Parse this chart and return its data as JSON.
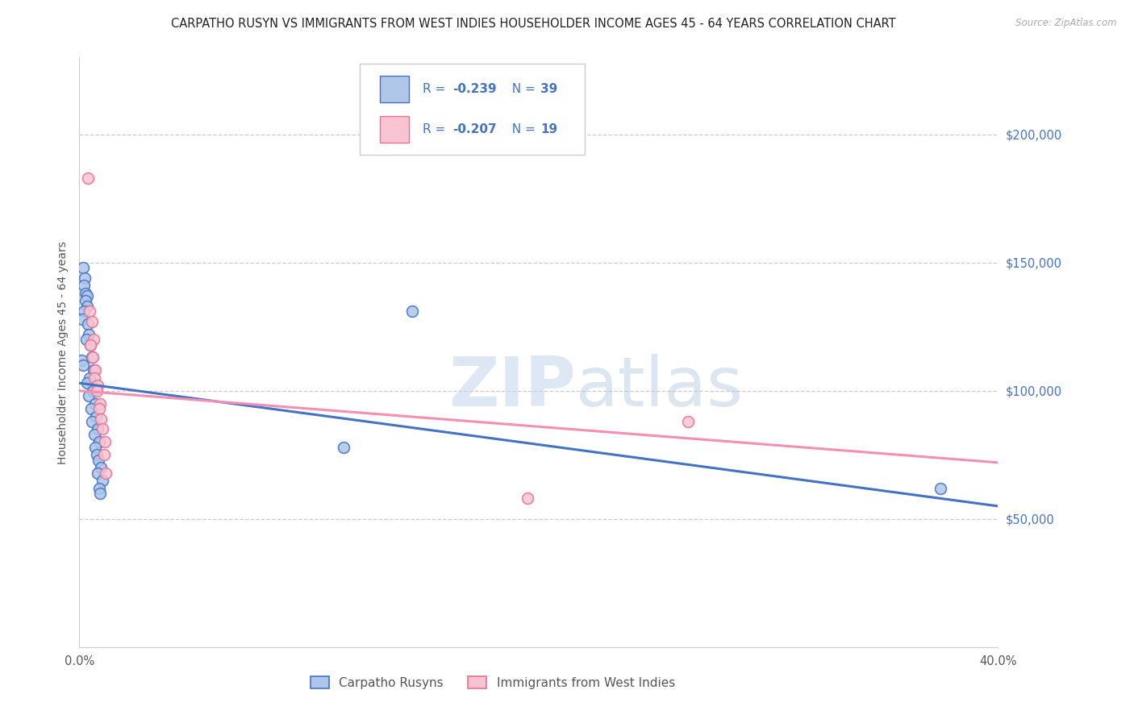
{
  "title": "CARPATHO RUSYN VS IMMIGRANTS FROM WEST INDIES HOUSEHOLDER INCOME AGES 45 - 64 YEARS CORRELATION CHART",
  "source": "Source: ZipAtlas.com",
  "ylabel": "Householder Income Ages 45 - 64 years",
  "xlim": [
    0.0,
    0.4
  ],
  "ylim": [
    0,
    230000
  ],
  "yticks": [
    50000,
    100000,
    150000,
    200000
  ],
  "ytick_labels": [
    "$50,000",
    "$100,000",
    "$150,000",
    "$200,000"
  ],
  "xticks": [
    0.0,
    0.1,
    0.2,
    0.3,
    0.4
  ],
  "xtick_labels": [
    "0.0%",
    "",
    "",
    "",
    "40.0%"
  ],
  "watermark_zip": "ZIP",
  "watermark_atlas": "atlas",
  "legend_R1": "-0.239",
  "legend_N1": "39",
  "legend_R2": "-0.207",
  "legend_N2": "19",
  "legend_label1": "Carpatho Rusyns",
  "legend_label2": "Immigrants from West Indies",
  "blue_line_color": "#4472c4",
  "pink_line_color": "#f48fb1",
  "blue_scatter_face": "#aec6e8",
  "blue_scatter_edge": "#4472c4",
  "pink_scatter_face": "#f9c4d2",
  "pink_scatter_edge": "#e87090",
  "legend_text_color": "#4472c4",
  "grid_color": "#cccccc",
  "background_color": "#ffffff",
  "title_fontsize": 10.5,
  "axis_label_fontsize": 10,
  "tick_fontsize": 10.5,
  "marker_size": 100,
  "blue_points": [
    [
      0.0015,
      148000
    ],
    [
      0.0022,
      144000
    ],
    [
      0.0018,
      141000
    ],
    [
      0.0028,
      138000
    ],
    [
      0.0032,
      137000
    ],
    [
      0.0025,
      135000
    ],
    [
      0.0035,
      133000
    ],
    [
      0.002,
      131000
    ],
    [
      0.0012,
      128000
    ],
    [
      0.0038,
      126000
    ],
    [
      0.0042,
      122000
    ],
    [
      0.003,
      120000
    ],
    [
      0.0048,
      118000
    ],
    [
      0.0055,
      113000
    ],
    [
      0.001,
      112000
    ],
    [
      0.0015,
      110000
    ],
    [
      0.0062,
      108000
    ],
    [
      0.0045,
      105000
    ],
    [
      0.0035,
      103000
    ],
    [
      0.0058,
      100000
    ],
    [
      0.004,
      98000
    ],
    [
      0.0068,
      95000
    ],
    [
      0.005,
      93000
    ],
    [
      0.0072,
      90000
    ],
    [
      0.0055,
      88000
    ],
    [
      0.008,
      85000
    ],
    [
      0.0065,
      83000
    ],
    [
      0.0088,
      80000
    ],
    [
      0.007,
      78000
    ],
    [
      0.0075,
      75000
    ],
    [
      0.0082,
      73000
    ],
    [
      0.0095,
      70000
    ],
    [
      0.0078,
      68000
    ],
    [
      0.0102,
      65000
    ],
    [
      0.0088,
      62000
    ],
    [
      0.009,
      60000
    ],
    [
      0.145,
      131000
    ],
    [
      0.375,
      62000
    ],
    [
      0.115,
      78000
    ]
  ],
  "pink_points": [
    [
      0.0038,
      183000
    ],
    [
      0.0045,
      131000
    ],
    [
      0.0055,
      127000
    ],
    [
      0.0062,
      120000
    ],
    [
      0.0048,
      118000
    ],
    [
      0.0058,
      113000
    ],
    [
      0.007,
      108000
    ],
    [
      0.0065,
      105000
    ],
    [
      0.008,
      102000
    ],
    [
      0.0075,
      100000
    ],
    [
      0.009,
      95000
    ],
    [
      0.0085,
      93000
    ],
    [
      0.0095,
      89000
    ],
    [
      0.01,
      85000
    ],
    [
      0.011,
      80000
    ],
    [
      0.0108,
      75000
    ],
    [
      0.0115,
      68000
    ],
    [
      0.265,
      88000
    ],
    [
      0.195,
      58000
    ]
  ],
  "blue_line_x": [
    0.0,
    0.4
  ],
  "blue_line_y": [
    103000,
    55000
  ],
  "pink_line_x": [
    0.0,
    0.4
  ],
  "pink_line_y": [
    100000,
    72000
  ]
}
